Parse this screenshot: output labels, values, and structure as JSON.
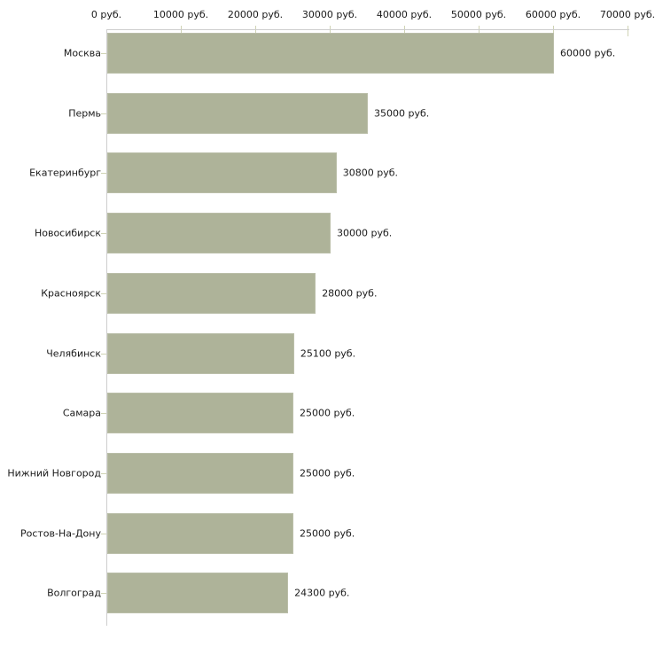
{
  "chart_data": {
    "type": "bar",
    "orientation": "horizontal",
    "title": "",
    "categories": [
      "Москва",
      "Пермь",
      "Екатеринбург",
      "Новосибирск",
      "Красноярск",
      "Челябинск",
      "Самара",
      "Нижний Новгород",
      "Ростов-На-Дону",
      "Волгоград"
    ],
    "values": [
      60000,
      35000,
      30800,
      30000,
      28000,
      25100,
      25000,
      25000,
      25000,
      24300
    ],
    "value_labels": [
      "60000 руб.",
      "35000 руб.",
      "30800 руб.",
      "30000 руб.",
      "28000 руб.",
      "25100 руб.",
      "25000 руб.",
      "25000 руб.",
      "25000 руб.",
      "24300 руб."
    ],
    "xlabel": "",
    "ylabel": "",
    "x_axis": {
      "range": [
        0,
        70000
      ],
      "ticks": [
        0,
        10000,
        20000,
        30000,
        40000,
        50000,
        60000,
        70000
      ],
      "tick_labels": [
        "0 руб.",
        "10000 руб.",
        "20000 руб.",
        "30000 руб.",
        "40000 руб.",
        "50000 руб.",
        "60000 руб.",
        "70000 руб."
      ],
      "unit": "руб.",
      "position": "top"
    },
    "grid": false,
    "legend": false,
    "colors": {
      "bar": "#aeb399",
      "axis_line": "#cecece",
      "tick_mark": "#cfd3b4",
      "text": "#1a1a1a",
      "background": "#ffffff"
    }
  }
}
